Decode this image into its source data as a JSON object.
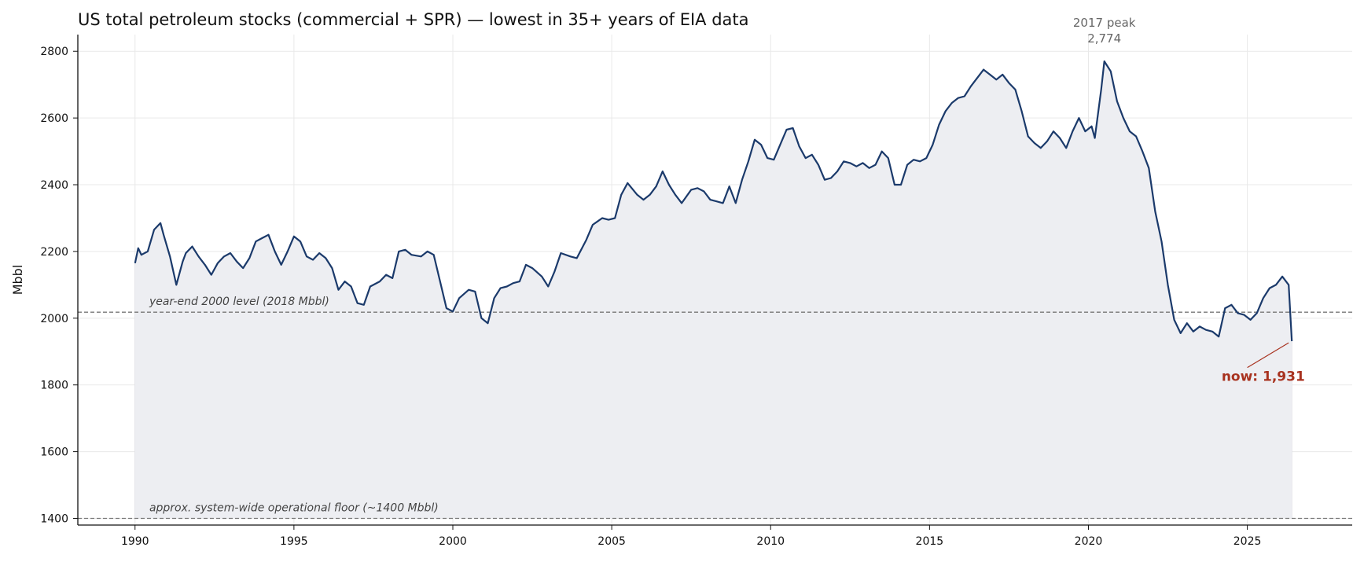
{
  "chart_data": {
    "type": "area",
    "title": "US total petroleum stocks (commercial + SPR) — lowest in 35+ years of EIA data",
    "xlabel": "",
    "ylabel": "Mbbl",
    "xlim": [
      1988.2,
      2028.3
    ],
    "ylim": [
      1380,
      2850
    ],
    "xticks": [
      1990,
      1995,
      2000,
      2005,
      2010,
      2015,
      2020,
      2025
    ],
    "yticks": [
      1400,
      1600,
      1800,
      2000,
      2200,
      2400,
      2600,
      2800
    ],
    "grid": true,
    "colors": {
      "line": "#1b3a6b",
      "fill": "#edeef2",
      "reference": "#777777",
      "annotation": "#a8321f",
      "peak": "#666666"
    },
    "series": [
      {
        "x": [
          1990.0,
          1990.1,
          1990.2,
          1990.4,
          1990.6,
          1990.8,
          1990.9,
          1991.1,
          1991.3,
          1991.5,
          1991.6,
          1991.8,
          1992.0,
          1992.2,
          1992.4,
          1992.6,
          1992.8,
          1993.0,
          1993.2,
          1993.4,
          1993.6,
          1993.8,
          1994.0,
          1994.2,
          1994.4,
          1994.6,
          1994.8,
          1995.0,
          1995.2,
          1995.4,
          1995.6,
          1995.8,
          1996.0,
          1996.2,
          1996.4,
          1996.6,
          1996.8,
          1997.0,
          1997.2,
          1997.4,
          1997.7,
          1997.9,
          1998.1,
          1998.3,
          1998.5,
          1998.7,
          1999.0,
          1999.2,
          1999.4,
          1999.6,
          1999.8,
          2000.0,
          2000.2,
          2000.5,
          2000.7,
          2000.9,
          2001.1,
          2001.3,
          2001.5,
          2001.7,
          2001.9,
          2002.1,
          2002.3,
          2002.5,
          2002.8,
          2003.0,
          2003.2,
          2003.4,
          2003.7,
          2003.9,
          2004.2,
          2004.4,
          2004.7,
          2004.9,
          2005.1,
          2005.3,
          2005.5,
          2005.8,
          2006.0,
          2006.2,
          2006.4,
          2006.6,
          2006.8,
          2007.0,
          2007.2,
          2007.5,
          2007.7,
          2007.9,
          2008.1,
          2008.3,
          2008.5,
          2008.7,
          2008.9,
          2009.1,
          2009.3,
          2009.5,
          2009.7,
          2009.9,
          2010.1,
          2010.3,
          2010.5,
          2010.7,
          2010.9,
          2011.1,
          2011.3,
          2011.5,
          2011.7,
          2011.9,
          2012.1,
          2012.3,
          2012.5,
          2012.7,
          2012.9,
          2013.1,
          2013.3,
          2013.5,
          2013.7,
          2013.9,
          2014.1,
          2014.3,
          2014.5,
          2014.7,
          2014.9,
          2015.1,
          2015.3,
          2015.5,
          2015.7,
          2015.9,
          2016.1,
          2016.3,
          2016.5,
          2016.7,
          2016.9,
          2017.1,
          2017.3,
          2017.5,
          2017.7,
          2017.9,
          2018.1,
          2018.3,
          2018.5,
          2018.7,
          2018.9,
          2019.1,
          2019.3,
          2019.5,
          2019.7,
          2019.9,
          2020.1,
          2020.2,
          2020.4,
          2020.5,
          2020.7,
          2020.9,
          2021.1,
          2021.3,
          2021.5,
          2021.7,
          2021.9,
          2022.1,
          2022.3,
          2022.5,
          2022.7,
          2022.9,
          2023.1,
          2023.3,
          2023.5,
          2023.7,
          2023.9,
          2024.1,
          2024.3,
          2024.5,
          2024.7,
          2024.9,
          2025.1,
          2025.3,
          2025.5,
          2025.7,
          2025.9,
          2026.1,
          2026.3,
          2026.4
        ],
        "y": [
          2165,
          2210,
          2190,
          2200,
          2265,
          2285,
          2250,
          2185,
          2100,
          2170,
          2195,
          2215,
          2185,
          2160,
          2130,
          2165,
          2185,
          2195,
          2170,
          2150,
          2180,
          2230,
          2240,
          2250,
          2200,
          2160,
          2200,
          2245,
          2230,
          2185,
          2175,
          2195,
          2180,
          2150,
          2085,
          2110,
          2095,
          2045,
          2040,
          2095,
          2110,
          2130,
          2120,
          2200,
          2205,
          2190,
          2185,
          2200,
          2190,
          2110,
          2030,
          2020,
          2060,
          2085,
          2080,
          2000,
          1985,
          2060,
          2090,
          2095,
          2105,
          2110,
          2160,
          2150,
          2125,
          2095,
          2140,
          2195,
          2185,
          2180,
          2235,
          2280,
          2300,
          2295,
          2300,
          2370,
          2405,
          2370,
          2355,
          2370,
          2395,
          2440,
          2400,
          2370,
          2345,
          2385,
          2390,
          2380,
          2355,
          2350,
          2345,
          2395,
          2345,
          2415,
          2470,
          2535,
          2520,
          2480,
          2475,
          2520,
          2565,
          2570,
          2515,
          2480,
          2490,
          2460,
          2415,
          2420,
          2440,
          2470,
          2465,
          2455,
          2465,
          2450,
          2460,
          2500,
          2480,
          2400,
          2400,
          2460,
          2475,
          2470,
          2480,
          2520,
          2580,
          2620,
          2645,
          2660,
          2665,
          2695,
          2720,
          2745,
          2730,
          2715,
          2730,
          2705,
          2685,
          2620,
          2545,
          2525,
          2510,
          2530,
          2560,
          2540,
          2510,
          2560,
          2600,
          2560,
          2575,
          2540,
          2685,
          2770,
          2740,
          2650,
          2600,
          2560,
          2545,
          2500,
          2450,
          2320,
          2230,
          2100,
          1995,
          1955,
          1985,
          1960,
          1975,
          1965,
          1960,
          1945,
          2030,
          2040,
          2015,
          2010,
          1995,
          2015,
          2060,
          2090,
          2100,
          2125,
          2100,
          1931
        ]
      }
    ],
    "reference_lines": [
      {
        "y": 2018,
        "label": "year-end 2000 level (2018 Mbbl)"
      },
      {
        "y": 1400,
        "label": "approx. system-wide operational floor (~1400 Mbbl)"
      }
    ],
    "annotations": [
      {
        "id": "peak",
        "lines": [
          "2017 peak",
          "2,774"
        ],
        "x": 2020.5,
        "y": 2774
      },
      {
        "id": "now",
        "text": "now: 1,931",
        "x": 2026.4,
        "y": 1931
      }
    ]
  }
}
